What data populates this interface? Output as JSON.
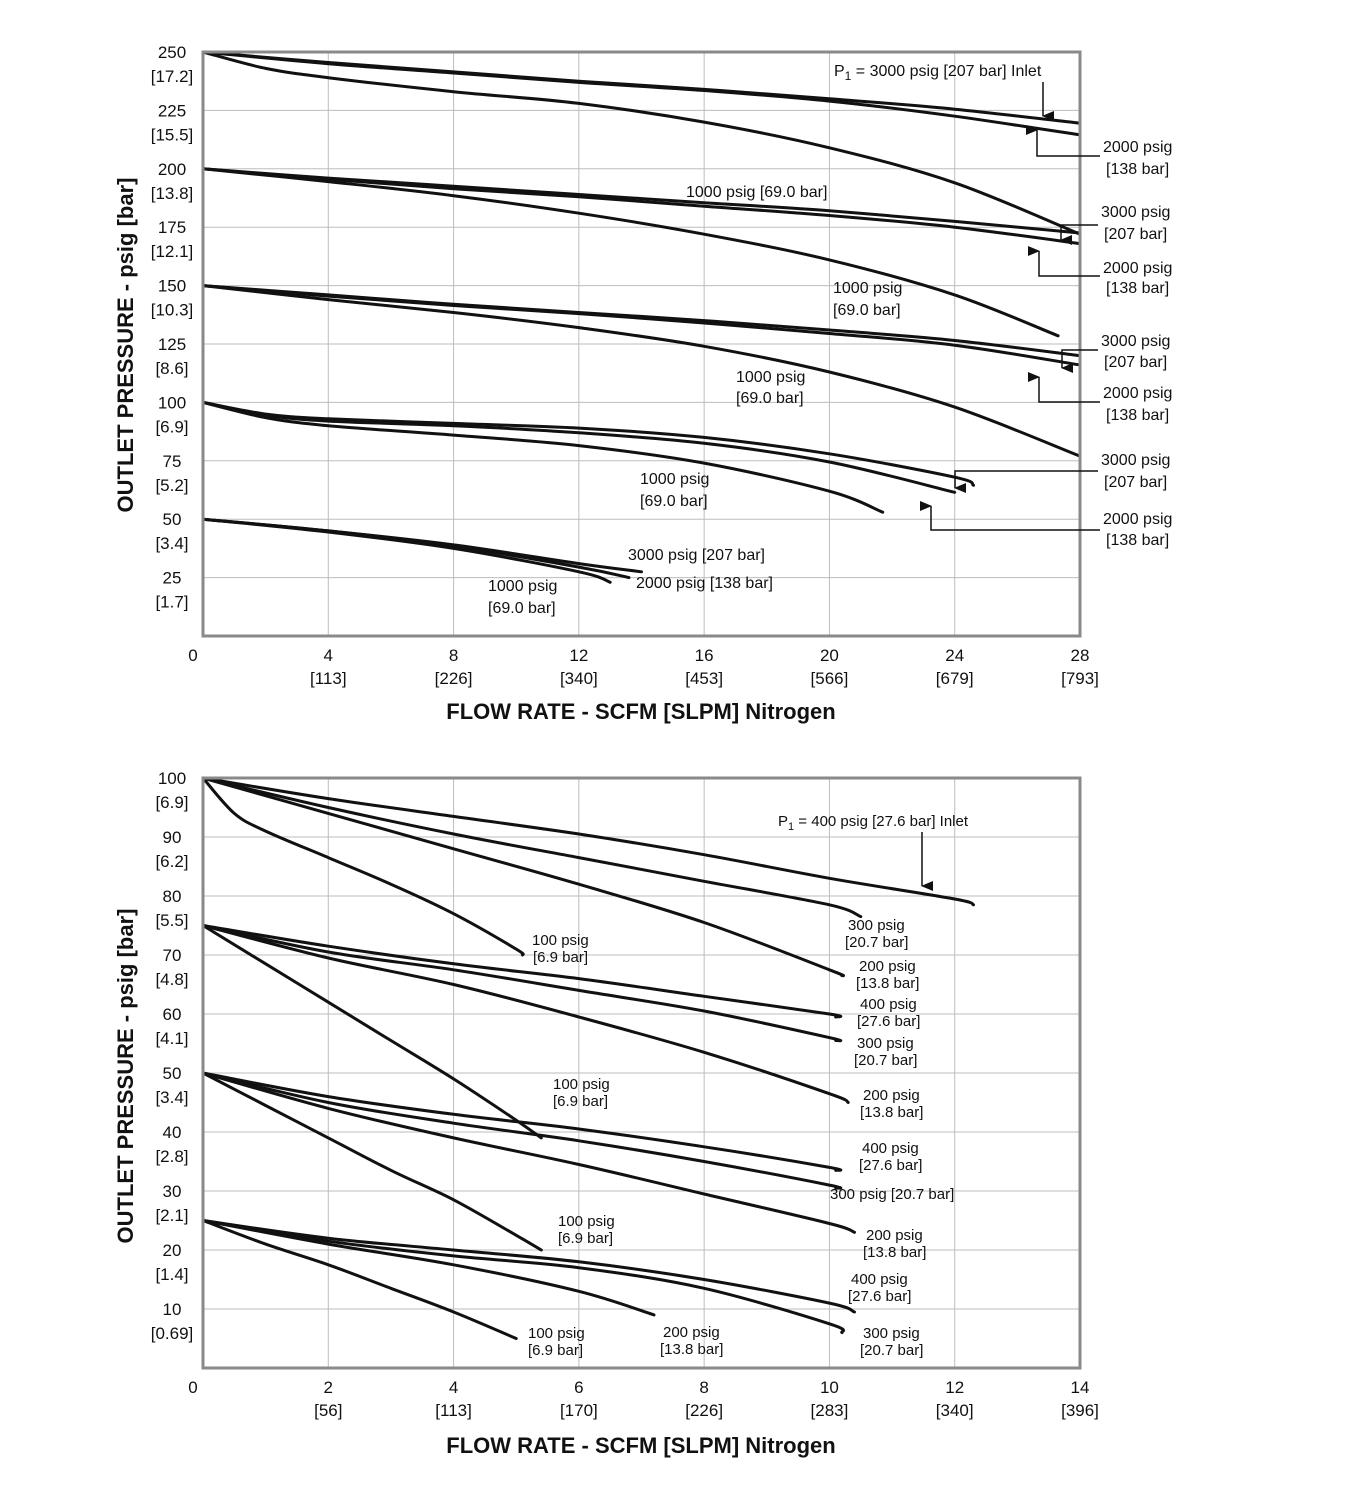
{
  "chart_data": [
    {
      "type": "line",
      "title": "",
      "xlabel": "FLOW RATE - SCFM [SLPM] Nitrogen",
      "ylabel": "OUTLET PRESSURE - psig [bar]",
      "xlim": [
        0,
        28
      ],
      "ylim": [
        0,
        250
      ],
      "x_ticks": [
        {
          "v": 0,
          "label": "0",
          "sub": ""
        },
        {
          "v": 4,
          "label": "4",
          "sub": "[113]"
        },
        {
          "v": 8,
          "label": "8",
          "sub": "[226]"
        },
        {
          "v": 12,
          "label": "12",
          "sub": "[340]"
        },
        {
          "v": 16,
          "label": "16",
          "sub": "[453]"
        },
        {
          "v": 20,
          "label": "20",
          "sub": "[566]"
        },
        {
          "v": 24,
          "label": "24",
          "sub": "[679]"
        },
        {
          "v": 28,
          "label": "28",
          "sub": "[793]"
        }
      ],
      "y_ticks": [
        {
          "v": 250,
          "label": "250",
          "sub": "[17.2]"
        },
        {
          "v": 225,
          "label": "225",
          "sub": "[15.5]"
        },
        {
          "v": 200,
          "label": "200",
          "sub": "[13.8]"
        },
        {
          "v": 175,
          "label": "175",
          "sub": "[12.1]"
        },
        {
          "v": 150,
          "label": "150",
          "sub": "[10.3]"
        },
        {
          "v": 125,
          "label": "125",
          "sub": "[8.6]"
        },
        {
          "v": 100,
          "label": "100",
          "sub": "[6.9]"
        },
        {
          "v": 75,
          "label": "75",
          "sub": "[5.2]"
        },
        {
          "v": 50,
          "label": "50",
          "sub": "[3.4]"
        },
        {
          "v": 25,
          "label": "25",
          "sub": "[1.7]"
        }
      ],
      "series": [
        {
          "name": "250 psig set - 3000 psig",
          "x": [
            0,
            4,
            8,
            12,
            16,
            20,
            24,
            28
          ],
          "y": [
            250,
            245.5,
            241.5,
            237.5,
            234,
            230,
            225.5,
            219.5
          ]
        },
        {
          "name": "250 psig set - 2000 psig",
          "x": [
            0,
            4,
            8,
            12,
            16,
            20,
            24,
            28
          ],
          "y": [
            250,
            245,
            241,
            237,
            233.5,
            229,
            222.5,
            214.5
          ]
        },
        {
          "name": "250 psig set - 1000 psig",
          "x": [
            0,
            2,
            4,
            8,
            12,
            16,
            20,
            24,
            28
          ],
          "y": [
            250,
            243,
            239,
            233,
            228,
            220,
            209,
            194,
            172
          ]
        },
        {
          "name": "200 psig set - 3000 psig",
          "x": [
            0,
            4,
            8,
            12,
            16,
            20,
            24,
            28
          ],
          "y": [
            200,
            196,
            192.5,
            189,
            185.5,
            182,
            177.5,
            172.5
          ]
        },
        {
          "name": "200 psig set - 2000 psig",
          "x": [
            0,
            4,
            8,
            12,
            16,
            20,
            24,
            28
          ],
          "y": [
            200,
            195.5,
            191.5,
            188,
            184,
            180,
            175,
            168
          ]
        },
        {
          "name": "200 psig set - 1000 psig",
          "x": [
            0,
            4,
            8,
            12,
            16,
            20,
            24,
            27.3
          ],
          "y": [
            200,
            194.5,
            188.5,
            181,
            172,
            161,
            146,
            128.5
          ]
        },
        {
          "name": "150 psig set - 3000 psig",
          "x": [
            0,
            4,
            8,
            12,
            16,
            20,
            24,
            28
          ],
          "y": [
            150,
            146,
            142,
            138.5,
            135,
            131,
            126.5,
            120
          ]
        },
        {
          "name": "150 psig set - 2000 psig",
          "x": [
            0,
            4,
            8,
            12,
            16,
            20,
            24,
            28
          ],
          "y": [
            150,
            145.5,
            141.5,
            138,
            134,
            129.5,
            124.5,
            116
          ]
        },
        {
          "name": "150 psig set - 1000 psig",
          "x": [
            0,
            4,
            8,
            12,
            16,
            20,
            24,
            28
          ],
          "y": [
            150,
            144,
            138.5,
            132,
            124,
            113,
            98,
            77
          ]
        },
        {
          "name": "100 psig set - 3000 psig",
          "x": [
            0,
            2,
            4,
            8,
            12,
            16,
            20,
            24,
            24.6
          ],
          "y": [
            100,
            95,
            93,
            91,
            89,
            85,
            78,
            68,
            64.5
          ]
        },
        {
          "name": "100 psig set - 2000 psig",
          "x": [
            0,
            2,
            4,
            8,
            12,
            16,
            20,
            24
          ],
          "y": [
            100,
            94.5,
            92,
            90,
            87,
            82.5,
            74.5,
            61.5
          ]
        },
        {
          "name": "100 psig set - 1000 psig",
          "x": [
            0,
            2,
            4,
            8,
            12,
            16,
            20,
            21.7
          ],
          "y": [
            100,
            93.5,
            90,
            86,
            81.5,
            74,
            62,
            53
          ]
        },
        {
          "name": "50 psig set - 3000 psig",
          "x": [
            0,
            4,
            8,
            12,
            14
          ],
          "y": [
            50,
            45,
            39,
            31,
            27.5
          ]
        },
        {
          "name": "50 psig set - 2000 psig",
          "x": [
            0,
            4,
            8,
            12,
            13.6
          ],
          "y": [
            50,
            45,
            38.5,
            29.5,
            25
          ]
        },
        {
          "name": "50 psig set - 1000 psig",
          "x": [
            0,
            4,
            8,
            12,
            13
          ],
          "y": [
            50,
            44.5,
            37.5,
            27.5,
            23
          ]
        }
      ]
    },
    {
      "type": "line",
      "title": "",
      "xlabel": "FLOW RATE - SCFM [SLPM] Nitrogen",
      "ylabel": "OUTLET PRESSURE - psig [bar]",
      "xlim": [
        0,
        14
      ],
      "ylim": [
        0,
        100
      ],
      "x_ticks": [
        {
          "v": 0,
          "label": "0",
          "sub": ""
        },
        {
          "v": 2,
          "label": "2",
          "sub": "[56]"
        },
        {
          "v": 4,
          "label": "4",
          "sub": "[113]"
        },
        {
          "v": 6,
          "label": "6",
          "sub": "[170]"
        },
        {
          "v": 8,
          "label": "8",
          "sub": "[226]"
        },
        {
          "v": 10,
          "label": "10",
          "sub": "[283]"
        },
        {
          "v": 12,
          "label": "12",
          "sub": "[340]"
        },
        {
          "v": 14,
          "label": "14",
          "sub": "[396]"
        }
      ],
      "y_ticks": [
        {
          "v": 100,
          "label": "100",
          "sub": "[6.9]"
        },
        {
          "v": 90,
          "label": "90",
          "sub": "[6.2]"
        },
        {
          "v": 80,
          "label": "80",
          "sub": "[5.5]"
        },
        {
          "v": 70,
          "label": "70",
          "sub": "[4.8]"
        },
        {
          "v": 60,
          "label": "60",
          "sub": "[4.1]"
        },
        {
          "v": 50,
          "label": "50",
          "sub": "[3.4]"
        },
        {
          "v": 40,
          "label": "40",
          "sub": "[2.8]"
        },
        {
          "v": 30,
          "label": "30",
          "sub": "[2.1]"
        },
        {
          "v": 20,
          "label": "20",
          "sub": "[1.4]"
        },
        {
          "v": 10,
          "label": "10",
          "sub": "[0.69]"
        }
      ],
      "series": [
        {
          "name": "100 psig set - 400 psig",
          "x": [
            0,
            2,
            4,
            6,
            8,
            10,
            12,
            12.3
          ],
          "y": [
            100,
            96.5,
            93.5,
            90.5,
            87,
            83,
            79.5,
            78.5
          ]
        },
        {
          "name": "100 psig set - 300 psig",
          "x": [
            0,
            2,
            4,
            6,
            8,
            10,
            10.5
          ],
          "y": [
            100,
            95,
            90.5,
            86.5,
            82.5,
            78.5,
            76.5
          ]
        },
        {
          "name": "100 psig set - 200 psig",
          "x": [
            0,
            2,
            4,
            6,
            8,
            10,
            10.2
          ],
          "y": [
            100,
            94,
            88,
            82,
            75.5,
            67.5,
            66.5
          ]
        },
        {
          "name": "100 psig set - 100 psig",
          "x": [
            0,
            0.5,
            1,
            2,
            3,
            4,
            5,
            5.1
          ],
          "y": [
            100,
            94,
            91,
            86.5,
            82,
            77,
            71,
            70
          ]
        },
        {
          "name": "75 psig set - 400 psig",
          "x": [
            0,
            2,
            4,
            6,
            8,
            10,
            10.1
          ],
          "y": [
            75,
            71.5,
            68.5,
            66,
            63,
            60,
            59.5
          ]
        },
        {
          "name": "75 psig set - 300 psig",
          "x": [
            0,
            2,
            4,
            6,
            8,
            10,
            10.1
          ],
          "y": [
            75,
            70.5,
            67.5,
            64,
            60.5,
            56,
            55.5
          ]
        },
        {
          "name": "75 psig set - 200 psig",
          "x": [
            0,
            2,
            4,
            6,
            8,
            10,
            10.3
          ],
          "y": [
            75,
            69.5,
            65,
            59.5,
            53.5,
            46.5,
            45
          ]
        },
        {
          "name": "75 psig set - 100 psig",
          "x": [
            0,
            1,
            2,
            3,
            4,
            5,
            5.4
          ],
          "y": [
            75,
            68.5,
            62,
            55.5,
            49,
            42,
            39
          ]
        },
        {
          "name": "50 psig set - 400 psig",
          "x": [
            0,
            2,
            4,
            6,
            8,
            10,
            10.1
          ],
          "y": [
            50,
            46,
            43,
            40.5,
            37.5,
            34,
            33.5
          ]
        },
        {
          "name": "50 psig set - 300 psig",
          "x": [
            0,
            2,
            4,
            6,
            8,
            10,
            10.1
          ],
          "y": [
            50,
            45,
            41.5,
            38.5,
            35,
            31,
            30.5
          ]
        },
        {
          "name": "50 psig set - 200 psig",
          "x": [
            0,
            2,
            4,
            6,
            8,
            10,
            10.4
          ],
          "y": [
            50,
            44,
            39,
            34.5,
            29.5,
            24.5,
            23
          ]
        },
        {
          "name": "50 psig set - 100 psig",
          "x": [
            0,
            1,
            2,
            3,
            4,
            5,
            5.4
          ],
          "y": [
            50,
            44.5,
            39,
            33.5,
            28.5,
            22.5,
            20
          ]
        },
        {
          "name": "25 psig set - 400 psig",
          "x": [
            0,
            2,
            4,
            6,
            8,
            10,
            10.4
          ],
          "y": [
            25,
            22,
            20,
            18,
            15,
            11,
            9.5
          ]
        },
        {
          "name": "25 psig set - 300 psig",
          "x": [
            0,
            2,
            4,
            6,
            8,
            10,
            10.2
          ],
          "y": [
            25,
            21.5,
            19,
            17,
            13.5,
            7.5,
            6
          ]
        },
        {
          "name": "25 psig set - 200 psig",
          "x": [
            0,
            2,
            4,
            6,
            7.2
          ],
          "y": [
            25,
            21,
            17.5,
            13,
            9
          ]
        },
        {
          "name": "25 psig set - 100 psig",
          "x": [
            0,
            1,
            2,
            3,
            4,
            5
          ],
          "y": [
            25,
            21,
            17.5,
            13.5,
            9.5,
            5
          ]
        }
      ]
    }
  ],
  "annotations": {
    "top": {
      "inlet_p": "P",
      "inlet_sub": "1",
      "inlet_rest": " = 3000 psig [207 bar] Inlet",
      "s250_2000_a": "2000 psig",
      "s250_2000_b": "[138 bar]",
      "s200_1000_top": "1000 psig [69.0 bar]",
      "s200_3000_a": "3000 psig",
      "s200_3000_b": "[207 bar]",
      "s200_2000_a": "2000 psig",
      "s200_2000_b": "[138 bar]",
      "s200_1000_a": "1000 psig",
      "s200_1000_b": "[69.0 bar]",
      "s150_3000_a": "3000 psig",
      "s150_3000_b": "[207 bar]",
      "s150_2000_a": "2000 psig",
      "s150_2000_b": "[138 bar]",
      "s150_1000_a": "1000 psig",
      "s150_1000_b": "[69.0 bar]",
      "s100_3000_a": "3000 psig",
      "s100_3000_b": "[207 bar]",
      "s100_2000_a": "2000 psig",
      "s100_2000_b": "[138 bar]",
      "s100_1000_a": "1000 psig",
      "s100_1000_b": "[69.0 bar]",
      "s50_3000": "3000 psig [207 bar]",
      "s50_2000": "2000 psig [138 bar]",
      "s50_1000_a": "1000 psig",
      "s50_1000_b": "[69.0 bar]"
    },
    "bottom": {
      "inlet_p": "P",
      "inlet_sub": "1",
      "inlet_rest": " = 400 psig [27.6 bar] Inlet",
      "s100_300_a": "300 psig",
      "s100_300_b": "[20.7 bar]",
      "s100_200_a": "200 psig",
      "s100_200_b": "[13.8 bar]",
      "s100_100_a": "100 psig",
      "s100_100_b": "[6.9 bar]",
      "s75_400_a": "400 psig",
      "s75_400_b": "[27.6 bar]",
      "s75_300_a": "300 psig",
      "s75_300_b": "[20.7 bar]",
      "s75_200_a": "200 psig",
      "s75_200_b": "[13.8 bar]",
      "s75_100_a": "100 psig",
      "s75_100_b": "[6.9 bar]",
      "s50_400_a": "400 psig",
      "s50_400_b": "[27.6 bar]",
      "s50_300": "300 psig [20.7 bar]",
      "s50_200_a": "200 psig",
      "s50_200_b": "[13.8 bar]",
      "s50_100_a": "100 psig",
      "s50_100_b": "[6.9 bar]",
      "s25_400_a": "400 psig",
      "s25_400_b": "[27.6 bar]",
      "s25_300_a": "300 psig",
      "s25_300_b": "[20.7 bar]",
      "s25_200_a": "200 psig",
      "s25_200_b": "[13.8 bar]",
      "s25_100_a": "100 psig",
      "s25_100_b": "[6.9 bar]"
    }
  }
}
